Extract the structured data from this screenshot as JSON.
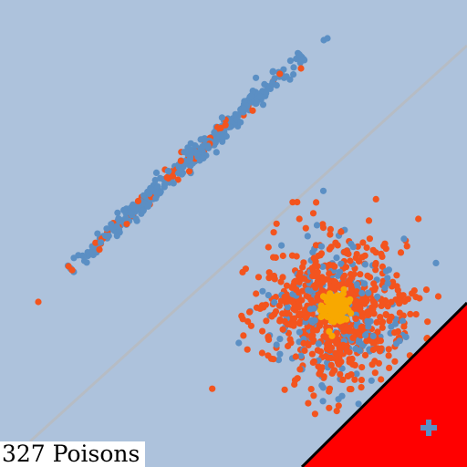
{
  "label": {
    "poisons_text": "327 Poisons"
  },
  "colors": {
    "background": "#adc2dc",
    "line": "#b6bcc4",
    "point_blue": "#5b8fc4",
    "point_orange": "#f3541e",
    "point_gold": "#f8a800",
    "region_red": "#ff0000",
    "region_edge": "#000000",
    "marker_plus": "#5b8fc4"
  },
  "icons": {
    "marker": "plus-icon"
  }
}
